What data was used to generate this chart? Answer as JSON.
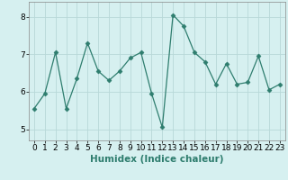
{
  "x": [
    0,
    1,
    2,
    3,
    4,
    5,
    6,
    7,
    8,
    9,
    10,
    11,
    12,
    13,
    14,
    15,
    16,
    17,
    18,
    19,
    20,
    21,
    22,
    23
  ],
  "y": [
    5.55,
    5.95,
    7.05,
    5.55,
    6.35,
    7.3,
    6.55,
    6.3,
    6.55,
    6.9,
    7.05,
    5.95,
    5.05,
    8.05,
    7.75,
    7.05,
    6.8,
    6.2,
    6.75,
    6.2,
    6.25,
    6.95,
    6.05,
    6.2
  ],
  "xlabel": "Humidex (Indice chaleur)",
  "xlim": [
    -0.5,
    23.5
  ],
  "ylim": [
    4.7,
    8.4
  ],
  "yticks": [
    5,
    6,
    7,
    8
  ],
  "xticks": [
    0,
    1,
    2,
    3,
    4,
    5,
    6,
    7,
    8,
    9,
    10,
    11,
    12,
    13,
    14,
    15,
    16,
    17,
    18,
    19,
    20,
    21,
    22,
    23
  ],
  "line_color": "#2e7d6e",
  "marker": "D",
  "marker_size": 2.5,
  "bg_color": "#d6f0f0",
  "grid_color": "#b8d8d8",
  "tick_label_fontsize": 6.5,
  "xlabel_fontsize": 7.5
}
